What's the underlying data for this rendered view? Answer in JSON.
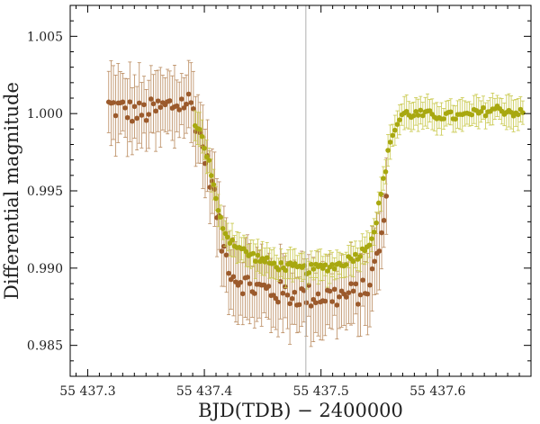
{
  "chart_data": {
    "type": "scatter",
    "xlabel": "BJD(TDB) − 2400000",
    "ylabel": "Differential magnitude",
    "xlim": [
      55437.285,
      55437.68
    ],
    "ylim": [
      0.983,
      1.007
    ],
    "xticks": [
      {
        "value": 55437.3,
        "label": "55 437.3"
      },
      {
        "value": 55437.4,
        "label": "55 437.4"
      },
      {
        "value": 55437.5,
        "label": "55 437.5"
      },
      {
        "value": 55437.6,
        "label": "55 437.6"
      }
    ],
    "yticks": [
      {
        "value": 0.985,
        "label": "0.985"
      },
      {
        "value": 0.99,
        "label": "0.990"
      },
      {
        "value": 0.995,
        "label": "0.995"
      },
      {
        "value": 1.0,
        "label": "1.000"
      },
      {
        "value": 1.005,
        "label": "1.005"
      }
    ],
    "grid": false,
    "legend": "none",
    "reference_line_x": 55437.487,
    "series": [
      {
        "color": "#9b5a2c",
        "error_color": "#b98a5e",
        "x_start": 55437.318,
        "x_end": 55437.556,
        "count": 119,
        "key_points": [
          [
            55437.318,
            1.0005
          ],
          [
            55437.345,
            1.0
          ],
          [
            55437.37,
            1.0005
          ],
          [
            55437.388,
            1.0008
          ],
          [
            55437.395,
            0.999
          ],
          [
            55437.408,
            0.995
          ],
          [
            55437.415,
            0.9915
          ],
          [
            55437.425,
            0.9895
          ],
          [
            55437.44,
            0.9888
          ],
          [
            55437.47,
            0.9883
          ],
          [
            55437.49,
            0.9882
          ],
          [
            55437.52,
            0.9882
          ],
          [
            55437.538,
            0.9885
          ],
          [
            55437.546,
            0.99
          ],
          [
            55437.553,
            0.9925
          ],
          [
            55437.556,
            0.994
          ]
        ],
        "scatter": 0.0008,
        "error_bar": 0.0022
      },
      {
        "color": "#a8a810",
        "error_color": "#c8c84a",
        "x_start": 55437.392,
        "x_end": 55437.673,
        "count": 142,
        "key_points": [
          [
            55437.392,
            0.9995
          ],
          [
            55437.398,
            0.9985
          ],
          [
            55437.405,
            0.9965
          ],
          [
            55437.412,
            0.9935
          ],
          [
            55437.42,
            0.992
          ],
          [
            55437.435,
            0.991
          ],
          [
            55437.46,
            0.9902
          ],
          [
            55437.487,
            0.9899
          ],
          [
            55437.515,
            0.9902
          ],
          [
            55437.535,
            0.991
          ],
          [
            55437.545,
            0.9922
          ],
          [
            55437.552,
            0.995
          ],
          [
            55437.56,
            0.9985
          ],
          [
            55437.57,
            1.0
          ],
          [
            55437.62,
            0.9998
          ],
          [
            55437.65,
            1.0003
          ],
          [
            55437.673,
            1.0
          ]
        ],
        "scatter": 0.0003,
        "error_bar": 0.0009
      }
    ]
  }
}
